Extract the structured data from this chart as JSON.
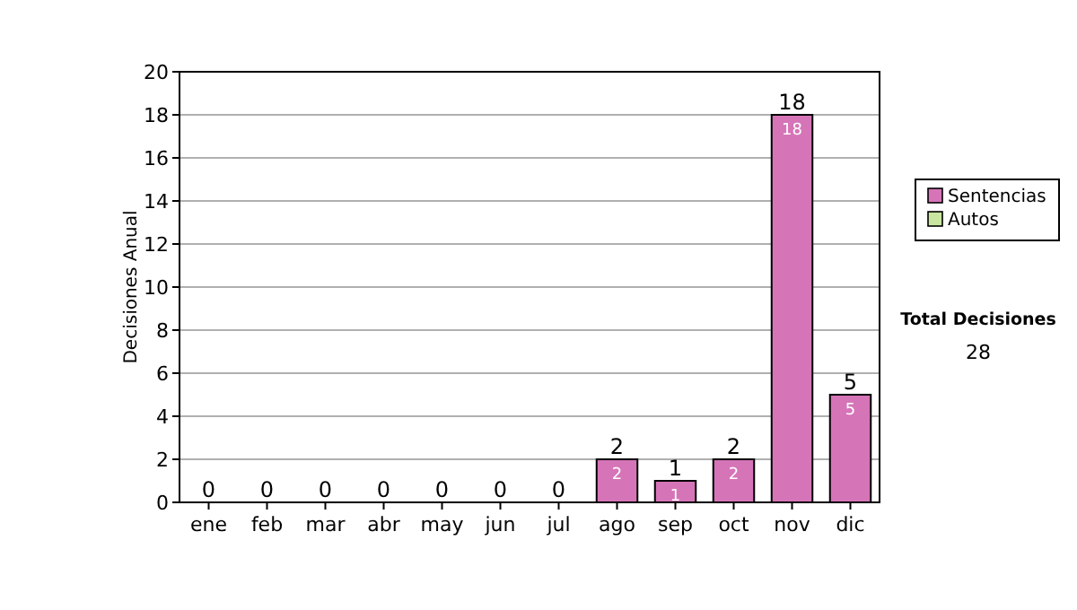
{
  "chart_data": {
    "type": "bar",
    "stacked": true,
    "ylabel": "Decisiones Anual",
    "categories": [
      "ene",
      "feb",
      "mar",
      "abr",
      "may",
      "jun",
      "jul",
      "ago",
      "sep",
      "oct",
      "nov",
      "dic"
    ],
    "series": [
      {
        "name": "Sentencias",
        "color": "#d674b8",
        "values": [
          0,
          0,
          0,
          0,
          0,
          0,
          0,
          2,
          1,
          2,
          18,
          5
        ],
        "value_labels": [
          null,
          null,
          null,
          null,
          null,
          null,
          null,
          "2",
          "1",
          "2",
          "18",
          "5"
        ]
      },
      {
        "name": "Autos",
        "color": "#c8e6a0",
        "values": [
          0,
          0,
          0,
          0,
          0,
          0,
          0,
          0,
          0,
          0,
          0,
          0
        ]
      }
    ],
    "totals": [
      "0",
      "0",
      "0",
      "0",
      "0",
      "0",
      "0",
      "2",
      "1",
      "2",
      "18",
      "5"
    ],
    "ylim": [
      0,
      20
    ],
    "yticks": [
      0,
      2,
      4,
      6,
      8,
      10,
      12,
      14,
      16,
      18,
      20
    ],
    "grid": "y",
    "legend": "right",
    "annotations": [
      "Total Decisiones",
      "28"
    ]
  }
}
